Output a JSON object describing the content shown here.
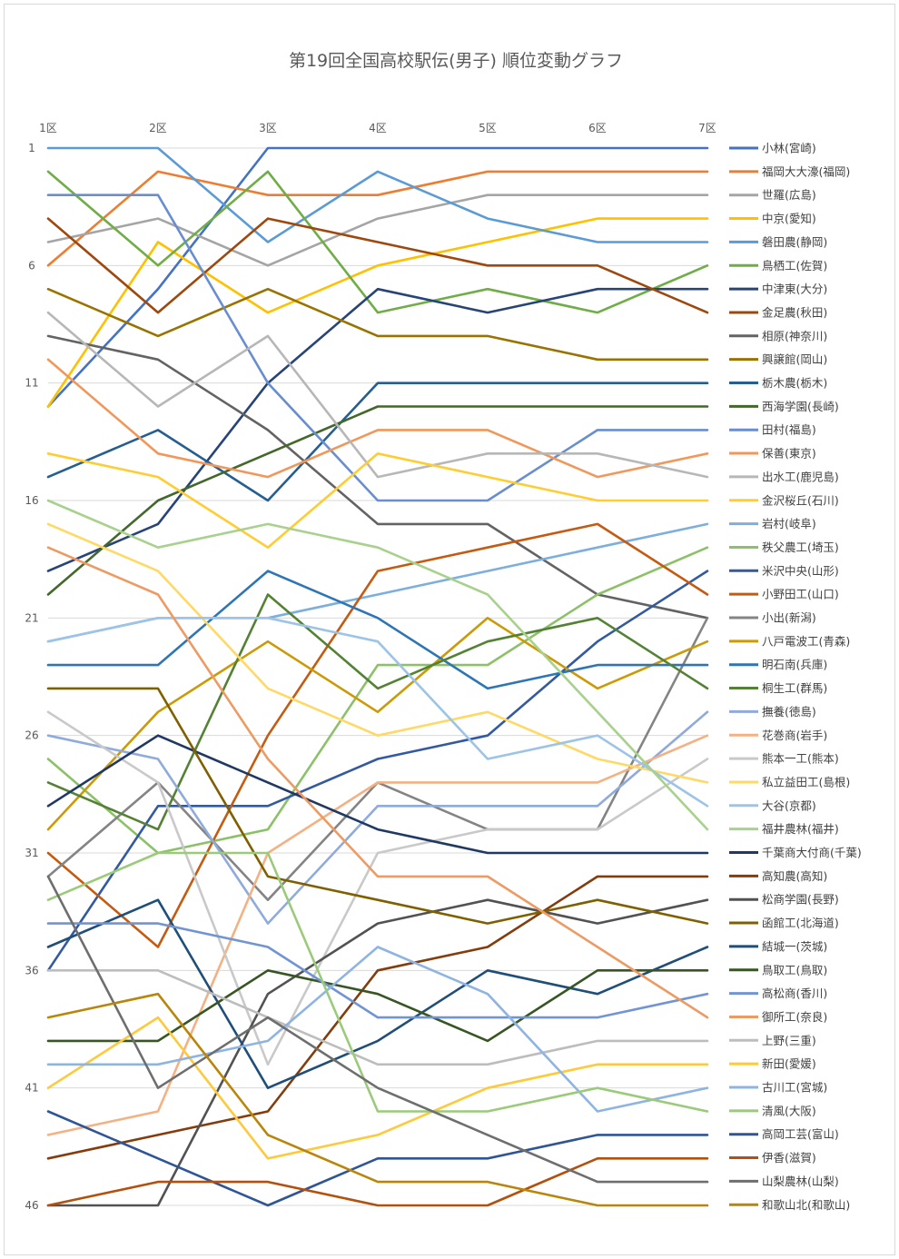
{
  "chart_data": {
    "type": "line",
    "title": "第19回全国高校駅伝(男子) 順位変動グラフ",
    "categories": [
      "1区",
      "2区",
      "3区",
      "4区",
      "5区",
      "6区",
      "7区"
    ],
    "y_ticks": [
      1,
      6,
      11,
      16,
      21,
      26,
      31,
      36,
      41,
      46
    ],
    "ylim": [
      1,
      46
    ],
    "y_reversed": true,
    "grid": true,
    "legend_position": "right",
    "series": [
      {
        "name": "小林(宮崎)",
        "color": "#4472C4",
        "values": [
          12,
          7,
          1,
          1,
          1,
          1,
          1
        ]
      },
      {
        "name": "福岡大大濠(福岡)",
        "color": "#ED7D31",
        "values": [
          6,
          2,
          3,
          3,
          2,
          2,
          2
        ]
      },
      {
        "name": "世羅(広島)",
        "color": "#A5A5A5",
        "values": [
          5,
          4,
          6,
          4,
          3,
          3,
          3
        ]
      },
      {
        "name": "中京(愛知)",
        "color": "#FFC000",
        "values": [
          12,
          5,
          8,
          6,
          5,
          4,
          4
        ]
      },
      {
        "name": "磐田農(静岡)",
        "color": "#5B9BD5",
        "values": [
          1,
          1,
          5,
          2,
          4,
          5,
          5
        ]
      },
      {
        "name": "鳥栖工(佐賀)",
        "color": "#70AD47",
        "values": [
          2,
          6,
          2,
          8,
          7,
          8,
          6
        ]
      },
      {
        "name": "中津東(大分)",
        "color": "#264478",
        "values": [
          19,
          17,
          11,
          7,
          8,
          7,
          7
        ]
      },
      {
        "name": "金足農(秋田)",
        "color": "#9E480E",
        "values": [
          4,
          8,
          4,
          5,
          6,
          6,
          8
        ]
      },
      {
        "name": "相原(神奈川)",
        "color": "#636363",
        "values": [
          9,
          10,
          13,
          17,
          17,
          20,
          21
        ]
      },
      {
        "name": "興譲館(岡山)",
        "color": "#997300",
        "values": [
          7,
          9,
          7,
          9,
          9,
          10,
          10
        ]
      },
      {
        "name": "栃木農(栃木)",
        "color": "#255E91",
        "values": [
          15,
          13,
          16,
          11,
          11,
          11,
          11
        ]
      },
      {
        "name": "西海学園(長崎)",
        "color": "#43682B",
        "values": [
          20,
          16,
          14,
          12,
          12,
          12,
          12
        ]
      },
      {
        "name": "田村(福島)",
        "color": "#698ED0",
        "values": [
          3,
          3,
          11,
          16,
          16,
          13,
          13
        ]
      },
      {
        "name": "保善(東京)",
        "color": "#F1975A",
        "values": [
          10,
          14,
          15,
          13,
          13,
          15,
          14
        ]
      },
      {
        "name": "出水工(鹿児島)",
        "color": "#B7B7B7",
        "values": [
          8,
          12,
          9,
          15,
          14,
          14,
          15
        ]
      },
      {
        "name": "金沢桜丘(石川)",
        "color": "#FFCD33",
        "values": [
          14,
          15,
          18,
          14,
          15,
          16,
          16
        ]
      },
      {
        "name": "岩村(岐阜)",
        "color": "#7CAFDD",
        "values": [
          22,
          21,
          21,
          20,
          19,
          18,
          17
        ]
      },
      {
        "name": "秩父農工(埼玉)",
        "color": "#8CC168",
        "values": [
          27,
          31,
          30,
          23,
          23,
          20,
          18
        ]
      },
      {
        "name": "米沢中央(山形)",
        "color": "#335AA1",
        "values": [
          36,
          29,
          29,
          27,
          26,
          22,
          19
        ]
      },
      {
        "name": "小野田工(山口)",
        "color": "#C55A11",
        "values": [
          31,
          35,
          26,
          19,
          18,
          17,
          20
        ]
      },
      {
        "name": "小出(新潟)",
        "color": "#848484",
        "values": [
          32,
          28,
          33,
          28,
          30,
          30,
          21
        ]
      },
      {
        "name": "八戸電波工(青森)",
        "color": "#CC9A06",
        "values": [
          30,
          25,
          22,
          25,
          21,
          24,
          22
        ]
      },
      {
        "name": "明石南(兵庫)",
        "color": "#2E75B6",
        "values": [
          23,
          23,
          19,
          21,
          24,
          23,
          23
        ]
      },
      {
        "name": "桐生工(群馬)",
        "color": "#548235",
        "values": [
          28,
          30,
          20,
          24,
          22,
          21,
          24
        ]
      },
      {
        "name": "撫養(徳島)",
        "color": "#8FAADC",
        "values": [
          26,
          27,
          34,
          29,
          29,
          29,
          25
        ]
      },
      {
        "name": "花巻商(岩手)",
        "color": "#F4B183",
        "values": [
          43,
          42,
          31,
          28,
          28,
          28,
          26
        ]
      },
      {
        "name": "熊本一工(熊本)",
        "color": "#C9C9C9",
        "values": [
          25,
          28,
          40,
          31,
          30,
          30,
          27
        ]
      },
      {
        "name": "私立益田工(島根)",
        "color": "#FFD966",
        "values": [
          17,
          19,
          24,
          26,
          25,
          27,
          28
        ]
      },
      {
        "name": "大谷(京都)",
        "color": "#9DC3E6",
        "values": [
          22,
          21,
          21,
          22,
          27,
          26,
          29
        ]
      },
      {
        "name": "福井農林(福井)",
        "color": "#A9D18E",
        "values": [
          16,
          18,
          17,
          18,
          20,
          25,
          30
        ]
      },
      {
        "name": "千葉商大付商(千葉)",
        "color": "#203864",
        "values": [
          29,
          26,
          28,
          30,
          31,
          31,
          31
        ]
      },
      {
        "name": "高知農(高知)",
        "color": "#843C0C",
        "values": [
          44,
          43,
          42,
          36,
          35,
          32,
          32
        ]
      },
      {
        "name": "松商学園(長野)",
        "color": "#525252",
        "values": [
          46,
          46,
          37,
          34,
          33,
          34,
          33
        ]
      },
      {
        "name": "函館工(北海道)",
        "color": "#7F6000",
        "values": [
          24,
          24,
          32,
          33,
          34,
          33,
          34
        ]
      },
      {
        "name": "結城一(茨城)",
        "color": "#1F4E79",
        "values": [
          35,
          33,
          41,
          39,
          36,
          37,
          35
        ]
      },
      {
        "name": "鳥取工(鳥取)",
        "color": "#375623",
        "values": [
          39,
          39,
          36,
          37,
          39,
          36,
          36
        ]
      },
      {
        "name": "高松商(香川)",
        "color": "#7094D4",
        "values": [
          34,
          34,
          35,
          38,
          38,
          38,
          37
        ]
      },
      {
        "name": "御所工(奈良)",
        "color": "#EE9A63",
        "values": [
          18,
          20,
          27,
          32,
          32,
          35,
          38
        ]
      },
      {
        "name": "上野(三重)",
        "color": "#BDBDBD",
        "values": [
          36,
          36,
          38,
          40,
          40,
          39,
          39
        ]
      },
      {
        "name": "新田(愛媛)",
        "color": "#FFC93C",
        "values": [
          41,
          38,
          44,
          43,
          41,
          40,
          40
        ]
      },
      {
        "name": "古川工(宮城)",
        "color": "#8DB4E2",
        "values": [
          40,
          40,
          39,
          35,
          37,
          42,
          41
        ]
      },
      {
        "name": "清風(大阪)",
        "color": "#9BCB7A",
        "values": [
          33,
          31,
          31,
          42,
          42,
          41,
          42
        ]
      },
      {
        "name": "高岡工芸(富山)",
        "color": "#2F5597",
        "values": [
          42,
          44,
          46,
          44,
          44,
          43,
          43
        ]
      },
      {
        "name": "伊香(滋賀)",
        "color": "#B4500C",
        "values": [
          46,
          45,
          45,
          46,
          46,
          44,
          44
        ]
      },
      {
        "name": "山梨農林(山梨)",
        "color": "#6E6E6E",
        "values": [
          32,
          41,
          38,
          41,
          43,
          45,
          45
        ]
      },
      {
        "name": "和歌山北(和歌山)",
        "color": "#B8860B",
        "values": [
          38,
          37,
          43,
          45,
          45,
          46,
          46
        ]
      }
    ]
  }
}
